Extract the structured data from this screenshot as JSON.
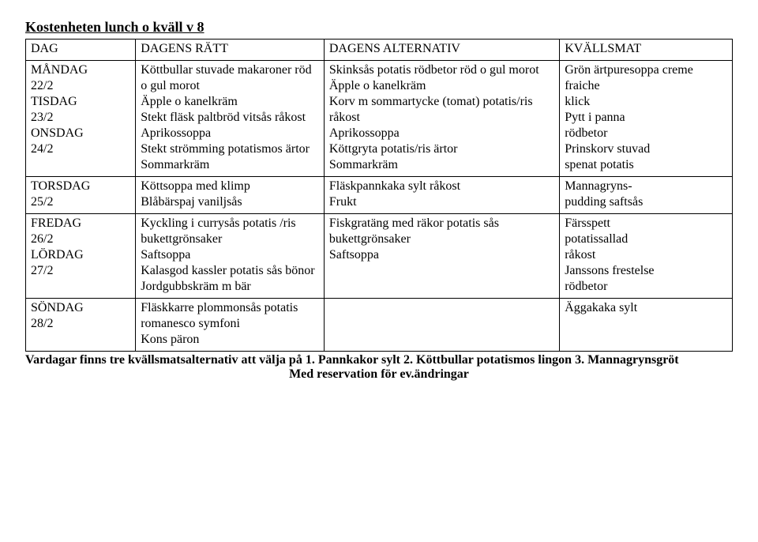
{
  "title": "Kostenheten lunch o kväll v 8",
  "header": {
    "day": "DAG",
    "main": "DAGENS RÄTT",
    "alt": "DAGENS ALTERNATIV",
    "evening": "KVÄLLSMAT"
  },
  "rows": [
    {
      "day": "MÅNDAG\n22/2",
      "main": "Köttbullar stuvade makaroner röd o gul morot\nÄpple o kanelkräm",
      "alt": "Skinksås potatis rödbetor röd o gul morot\nÄpple o kanelkräm",
      "evening": "Grön ärtpuresoppa creme fraiche\nklick"
    },
    {
      "day": "TISDAG\n23/2",
      "main": "Stekt fläsk paltbröd vitsås råkost\nAprikossoppa",
      "alt": "Korv m sommartycke (tomat)  potatis/ris råkost\nAprikossoppa",
      "evening": "Pytt i panna\nrödbetor"
    },
    {
      "day": "ONSDAG\n24/2",
      "main": "Stekt strömming potatismos ärtor\nSommarkräm",
      "alt": "Köttgryta potatis/ris ärtor\nSommarkräm",
      "evening": "Prinskorv stuvad\nspenat potatis"
    },
    {
      "day": "TORSDAG\n25/2",
      "main": "Köttsoppa med klimp\nBlåbärspaj vaniljsås",
      "alt": "Fläskpannkaka sylt råkost\nFrukt",
      "evening": "Mannagryns-\npudding saftsås"
    },
    {
      "day": "FREDAG\n26/2",
      "main": "Kyckling i currysås potatis /ris bukettgrönsaker\nSaftsoppa",
      "alt": "Fiskgratäng med räkor potatis sås bukettgrönsaker\nSaftsoppa",
      "evening": "Färsspett\npotatissallad\nråkost"
    },
    {
      "day": "LÖRDAG\n27/2",
      "main": "Kalasgod kassler potatis sås bönor\nJordgubbskräm m bär",
      "alt": "",
      "evening": "Janssons frestelse\nrödbetor"
    },
    {
      "day": "SÖNDAG\n28/2",
      "main": "Fläskkarre plommonsås potatis romanesco symfoni\nKons päron",
      "alt": "",
      "evening": "Äggakaka sylt"
    }
  ],
  "footer_line1": "Vardagar finns tre kvällsmatsalternativ att välja på 1. Pannkakor sylt 2. Köttbullar potatismos lingon 3. Mannagrynsgröt",
  "footer_line2": "Med reservation för ev.ändringar"
}
